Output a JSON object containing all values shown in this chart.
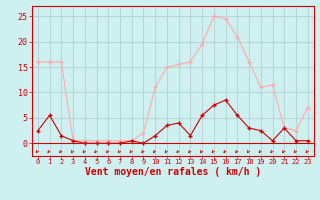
{
  "hours": [
    0,
    1,
    2,
    3,
    4,
    5,
    6,
    7,
    8,
    9,
    10,
    11,
    12,
    13,
    14,
    15,
    16,
    17,
    18,
    19,
    20,
    21,
    22,
    23
  ],
  "wind_avg": [
    2.5,
    5.5,
    1.5,
    0.5,
    0.0,
    0.0,
    0.0,
    0.0,
    0.5,
    0.0,
    1.5,
    3.5,
    4.0,
    1.5,
    5.5,
    7.5,
    8.5,
    5.5,
    3.0,
    2.5,
    0.5,
    3.0,
    0.5,
    0.5
  ],
  "wind_gust": [
    16.0,
    16.0,
    16.0,
    0.5,
    0.5,
    0.5,
    0.5,
    0.5,
    0.5,
    2.0,
    11.0,
    15.0,
    15.5,
    16.0,
    19.5,
    25.0,
    24.5,
    21.0,
    16.0,
    11.0,
    11.5,
    3.0,
    2.5,
    7.0
  ],
  "ylabel_values": [
    0,
    5,
    10,
    15,
    20,
    25
  ],
  "ylim": [
    -2.5,
    27
  ],
  "xlim": [
    -0.5,
    23.5
  ],
  "bg_color": "#cff0f0",
  "grid_color": "#b0c8c8",
  "line_avg_color": "#cc0000",
  "line_gust_color": "#ffaaaa",
  "xlabel": "Vent moyen/en rafales ( km/h )",
  "label_fontsize": 7,
  "tick_fontsize": 5,
  "ytick_fontsize": 6
}
